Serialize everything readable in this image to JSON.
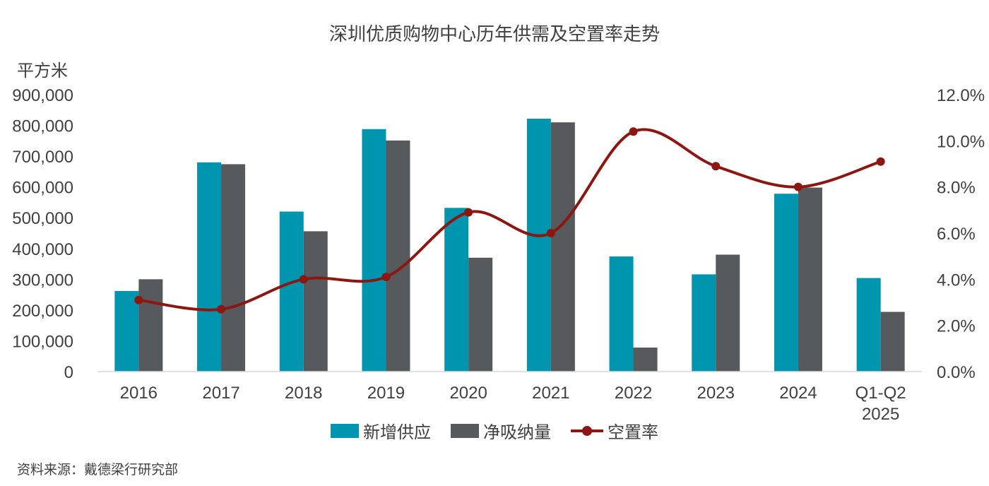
{
  "title": "深圳优质购物中心历年供需及空置率走势",
  "unit_label": "平方米",
  "source": "资料来源：戴德梁行研究部",
  "colors": {
    "supply": "#0095AE",
    "absorption": "#565A5C",
    "vacancy": "#8C1711"
  },
  "chart_data": {
    "type": "bar",
    "categories": [
      "2016",
      "2017",
      "2018",
      "2019",
      "2020",
      "2021",
      "2022",
      "2023",
      "2024",
      "Q1-Q2\n2025"
    ],
    "series": [
      {
        "name": "新增供应",
        "type": "bar",
        "axis": "left",
        "values": [
          262000,
          680000,
          520000,
          788000,
          532000,
          822000,
          374000,
          316000,
          578000,
          304000
        ]
      },
      {
        "name": "净吸纳量",
        "type": "bar",
        "axis": "left",
        "values": [
          300000,
          674000,
          456000,
          751000,
          370000,
          810000,
          78000,
          380000,
          598000,
          194000
        ]
      },
      {
        "name": "空置率",
        "type": "line",
        "axis": "right",
        "values": [
          3.1,
          2.7,
          4.0,
          4.1,
          6.9,
          6.0,
          10.4,
          8.9,
          8.0,
          9.1
        ]
      }
    ],
    "y_left": {
      "min": 0,
      "max": 900000,
      "step": 100000,
      "tick_labels": [
        "0",
        "100,000",
        "200,000",
        "300,000",
        "400,000",
        "500,000",
        "600,000",
        "700,000",
        "800,000",
        "900,000"
      ]
    },
    "y_right": {
      "min": 0,
      "max": 12,
      "step": 2,
      "tick_labels": [
        "0.0%",
        "2.0%",
        "4.0%",
        "6.0%",
        "8.0%",
        "10.0%",
        "12.0%"
      ]
    },
    "grid": false,
    "legend_position": "bottom"
  }
}
